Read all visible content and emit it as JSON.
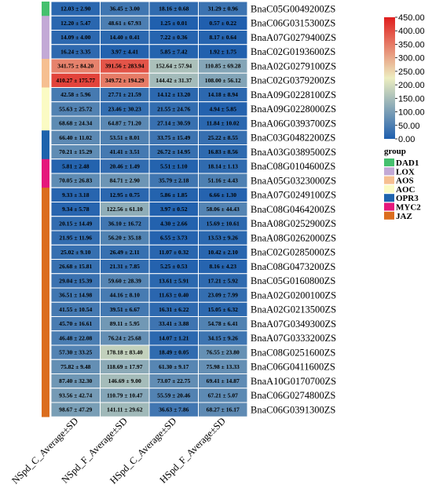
{
  "chart_data": {
    "type": "heatmap",
    "columns": [
      "NSpd_C_Average±SD",
      "NSpd_F_Average±SD",
      "HSpd_C_Average±SD",
      "HSpd_F_Average±SD"
    ],
    "rows": [
      {
        "gene": "BnaC05G0049200ZS",
        "group": "DAD1",
        "values": [
          12.03,
          36.45,
          18.16,
          31.29
        ],
        "labels": [
          "12.03 ± 2.90",
          "36.45 ± 3.00",
          "18.16 ± 0.68",
          "31.29 ± 0.96"
        ]
      },
      {
        "gene": "BnaC06G0315300ZS",
        "group": "LOX",
        "values": [
          12.2,
          48.61,
          1.25,
          0.57
        ],
        "labels": [
          "12.20 ± 5.47",
          "48.61 ± 67.93",
          "1.25 ± 0.01",
          "0.57 ± 0.22"
        ]
      },
      {
        "gene": "BnaA07G0279400ZS",
        "group": "LOX",
        "values": [
          14.09,
          14.4,
          7.22,
          8.17
        ],
        "labels": [
          "14.09 ± 4.00",
          "14.40 ± 0.41",
          "7.22 ± 0.36",
          "8.17 ± 0.64"
        ]
      },
      {
        "gene": "BnaC02G0193600ZS",
        "group": "LOX",
        "values": [
          16.24,
          3.97,
          5.85,
          1.92
        ],
        "labels": [
          "16.24 ± 3.35",
          "3.97 ± 4.41",
          "5.85 ± 7.42",
          "1.92 ± 1.75"
        ]
      },
      {
        "gene": "BnaA02G0279100ZS",
        "group": "AOS",
        "values": [
          341.75,
          391.56,
          152.64,
          110.85
        ],
        "labels": [
          "341.75 ± 84.20",
          "391.56 ± 283.94",
          "152.64 ± 57.94",
          "110.85 ± 69.28"
        ]
      },
      {
        "gene": "BnaC02G0379200ZS",
        "group": "AOS",
        "values": [
          410.27,
          349.72,
          144.42,
          108.0
        ],
        "labels": [
          "410.27 ± 175.77",
          "349.72 ± 194.29",
          "144.42 ± 31.37",
          "108.00 ± 56.12"
        ]
      },
      {
        "gene": "BnaA09G0228100ZS",
        "group": "AOC",
        "values": [
          42.58,
          27.71,
          14.12,
          14.18
        ],
        "labels": [
          "42.58 ± 5.96",
          "27.71 ± 21.59",
          "14.12 ± 13.20",
          "14.18 ± 8.94"
        ]
      },
      {
        "gene": "BnaA09G0228000ZS",
        "group": "AOC",
        "values": [
          55.63,
          23.46,
          21.55,
          4.94
        ],
        "labels": [
          "55.63 ± 25.72",
          "23.46 ± 30.23",
          "21.55 ± 24.76",
          "4.94 ± 5.85"
        ]
      },
      {
        "gene": "BnaA06G0393700ZS",
        "group": "AOC",
        "values": [
          68.68,
          64.87,
          27.14,
          11.84
        ],
        "labels": [
          "68.68 ± 24.34",
          "64.87 ± 71.20",
          "27.14 ± 30.59",
          "11.84 ± 10.02"
        ]
      },
      {
        "gene": "BnaC03G0482200ZS",
        "group": "OPR3",
        "values": [
          66.4,
          53.51,
          33.75,
          25.22
        ],
        "labels": [
          "66.40 ± 11.02",
          "53.51 ± 8.01",
          "33.75 ± 15.49",
          "25.22 ± 8.55"
        ]
      },
      {
        "gene": "BnaA03G0389500ZS",
        "group": "OPR3",
        "values": [
          70.21,
          41.41,
          26.72,
          16.83
        ],
        "labels": [
          "70.21 ± 15.29",
          "41.41 ± 3.51",
          "26.72 ± 14.95",
          "16.83 ± 8.56"
        ]
      },
      {
        "gene": "BnaC08G0104600ZS",
        "group": "MYC2",
        "values": [
          5.81,
          20.46,
          5.51,
          18.14
        ],
        "labels": [
          "5.81 ± 2.48",
          "20.46 ± 1.49",
          "5.51 ± 1.10",
          "18.14 ± 1.13"
        ]
      },
      {
        "gene": "BnaA05G0323000ZS",
        "group": "MYC2",
        "values": [
          70.05,
          84.71,
          35.79,
          51.16
        ],
        "labels": [
          "70.05 ± 26.83",
          "84.71 ± 2.90",
          "35.79 ± 2.18",
          "51.16 ± 4.43"
        ]
      },
      {
        "gene": "BnaA07G0249100ZS",
        "group": "JAZ",
        "values": [
          9.33,
          12.95,
          5.86,
          6.66
        ],
        "labels": [
          "9.33 ± 3.18",
          "12.95 ± 0.75",
          "5.86 ± 1.85",
          "6.66 ± 1.30"
        ]
      },
      {
        "gene": "BnaC08G0464200ZS",
        "group": "JAZ",
        "values": [
          9.34,
          122.56,
          3.97,
          58.06
        ],
        "labels": [
          "9.34 ± 5.78",
          "122.56 ± 61.10",
          "3.97 ± 0.52",
          "58.06 ± 44.43"
        ]
      },
      {
        "gene": "BnaA08G0252900ZS",
        "group": "JAZ",
        "values": [
          20.15,
          36.1,
          4.3,
          15.69
        ],
        "labels": [
          "20.15 ± 14.49",
          "36.10 ± 16.72",
          "4.30 ± 2.66",
          "15.69 ± 10.61"
        ]
      },
      {
        "gene": "BnaA08G0262000ZS",
        "group": "JAZ",
        "values": [
          21.95,
          56.2,
          6.55,
          13.53
        ],
        "labels": [
          "21.95 ± 11.96",
          "56.20 ± 35.18",
          "6.55 ± 3.73",
          "13.53 ± 9.26"
        ]
      },
      {
        "gene": "BnaC02G0285000ZS",
        "group": "JAZ",
        "values": [
          25.02,
          26.49,
          11.07,
          10.42
        ],
        "labels": [
          "25.02 ± 9.10",
          "26.49 ± 2.11",
          "11.07 ± 0.32",
          "10.42 ± 2.10"
        ]
      },
      {
        "gene": "BnaC08G0473200ZS",
        "group": "JAZ",
        "values": [
          26.68,
          21.31,
          5.25,
          8.16
        ],
        "labels": [
          "26.68 ± 15.81",
          "21.31 ± 7.85",
          "5.25 ± 0.53",
          "8.16 ± 4.23"
        ]
      },
      {
        "gene": "BnaC05G0160800ZS",
        "group": "JAZ",
        "values": [
          29.04,
          59.6,
          13.61,
          17.21
        ],
        "labels": [
          "29.04 ± 15.39",
          "59.60 ± 28.39",
          "13.61 ± 5.91",
          "17.21 ± 5.92"
        ]
      },
      {
        "gene": "BnaA02G0200100ZS",
        "group": "JAZ",
        "values": [
          36.51,
          44.16,
          11.63,
          23.09
        ],
        "labels": [
          "36.51 ± 14.98",
          "44.16 ± 8.10",
          "11.63 ± 0.40",
          "23.09 ± 7.99"
        ]
      },
      {
        "gene": "BnaA02G0213500ZS",
        "group": "JAZ",
        "values": [
          41.55,
          39.51,
          16.31,
          15.05
        ],
        "labels": [
          "41.55 ± 10.54",
          "39.51 ± 6.67",
          "16.31 ± 6.22",
          "15.05 ± 6.32"
        ]
      },
      {
        "gene": "BnaA07G0349300ZS",
        "group": "JAZ",
        "values": [
          45.7,
          89.11,
          33.41,
          54.78
        ],
        "labels": [
          "45.70 ± 16.61",
          "89.11 ± 5.95",
          "33.41 ± 3.88",
          "54.78 ± 6.41"
        ]
      },
      {
        "gene": "BnaA07G0333200ZS",
        "group": "JAZ",
        "values": [
          46.48,
          76.24,
          14.07,
          34.15
        ],
        "labels": [
          "46.48 ± 22.08",
          "76.24 ± 25.68",
          "14.07 ± 1.21",
          "34.15 ± 9.26"
        ]
      },
      {
        "gene": "BnaC08G0251600ZS",
        "group": "JAZ",
        "values": [
          57.3,
          178.18,
          18.49,
          76.55
        ],
        "labels": [
          "57.30 ± 33.25",
          "178.18 ± 83.40",
          "18.49 ± 0.05",
          "76.55 ± 23.80"
        ]
      },
      {
        "gene": "BnaC06G0411600ZS",
        "group": "JAZ",
        "values": [
          75.82,
          118.69,
          61.3,
          75.98
        ],
        "labels": [
          "75.82 ± 9.48",
          "118.69 ± 17.97",
          "61.30 ± 9.17",
          "75.98 ± 13.33"
        ]
      },
      {
        "gene": "BnaA10G0170700ZS",
        "group": "JAZ",
        "values": [
          87.4,
          146.69,
          73.07,
          69.41
        ],
        "labels": [
          "87.40 ± 32.30",
          "146.69 ± 9.00",
          "73.07 ± 22.75",
          "69.41 ± 14.87"
        ]
      },
      {
        "gene": "BnaC06G0274800ZS",
        "group": "JAZ",
        "values": [
          93.56,
          110.79,
          55.59,
          67.21
        ],
        "labels": [
          "93.56 ± 42.74",
          "110.79 ± 10.47",
          "55.59 ± 20.46",
          "67.21 ± 5.07"
        ]
      },
      {
        "gene": "BnaC06G0391300ZS",
        "group": "JAZ",
        "values": [
          98.67,
          141.11,
          36.63,
          68.27
        ],
        "labels": [
          "98.67 ± 47.29",
          "141.11 ± 29.62",
          "36.63 ± 7.86",
          "68.27 ± 16.17"
        ]
      }
    ],
    "color_scale": {
      "min": 0,
      "max": 450,
      "ticks": [
        0.0,
        50.0,
        100.0,
        150.0,
        200.0,
        250.0,
        300.0,
        350.0,
        400.0,
        450.0
      ],
      "tick_labels": [
        "0.00",
        "50.00",
        "100.00",
        "150.00",
        "200.00",
        "250.00",
        "300.00",
        "350.00",
        "400.00",
        "450.00"
      ],
      "colors": [
        "#1f5fae",
        "#edeec0",
        "#e01e1e"
      ]
    },
    "group_legend": {
      "title": "group",
      "items": [
        {
          "name": "DAD1",
          "color": "#45c06e"
        },
        {
          "name": "LOX",
          "color": "#c3a9d6"
        },
        {
          "name": "AOS",
          "color": "#f6bf91"
        },
        {
          "name": "AOC",
          "color": "#fbfbc4"
        },
        {
          "name": "OPR3",
          "color": "#1d63ad"
        },
        {
          "name": "MYC2",
          "color": "#e5187c"
        },
        {
          "name": "JAZ",
          "color": "#db6d1e"
        }
      ]
    }
  }
}
